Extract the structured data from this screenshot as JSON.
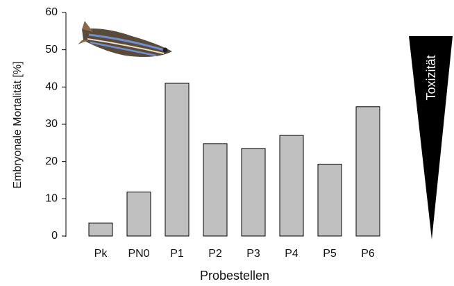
{
  "chart_data": {
    "type": "bar",
    "y_label": "Embryonale Mortalität [%]",
    "x_label": "Probestellen",
    "annotation": "Toxizität",
    "categories": [
      "Pk",
      "PN0",
      "P1",
      "P2",
      "P3",
      "P4",
      "P5",
      "P6"
    ],
    "values": [
      3.5,
      11.8,
      41,
      24.8,
      23.5,
      27,
      19.3,
      34.7
    ],
    "color": "#c0c0c0",
    "ylim": [
      0,
      60
    ],
    "yticks": [
      0,
      10,
      20,
      30,
      40,
      50,
      60
    ],
    "grid": false
  }
}
